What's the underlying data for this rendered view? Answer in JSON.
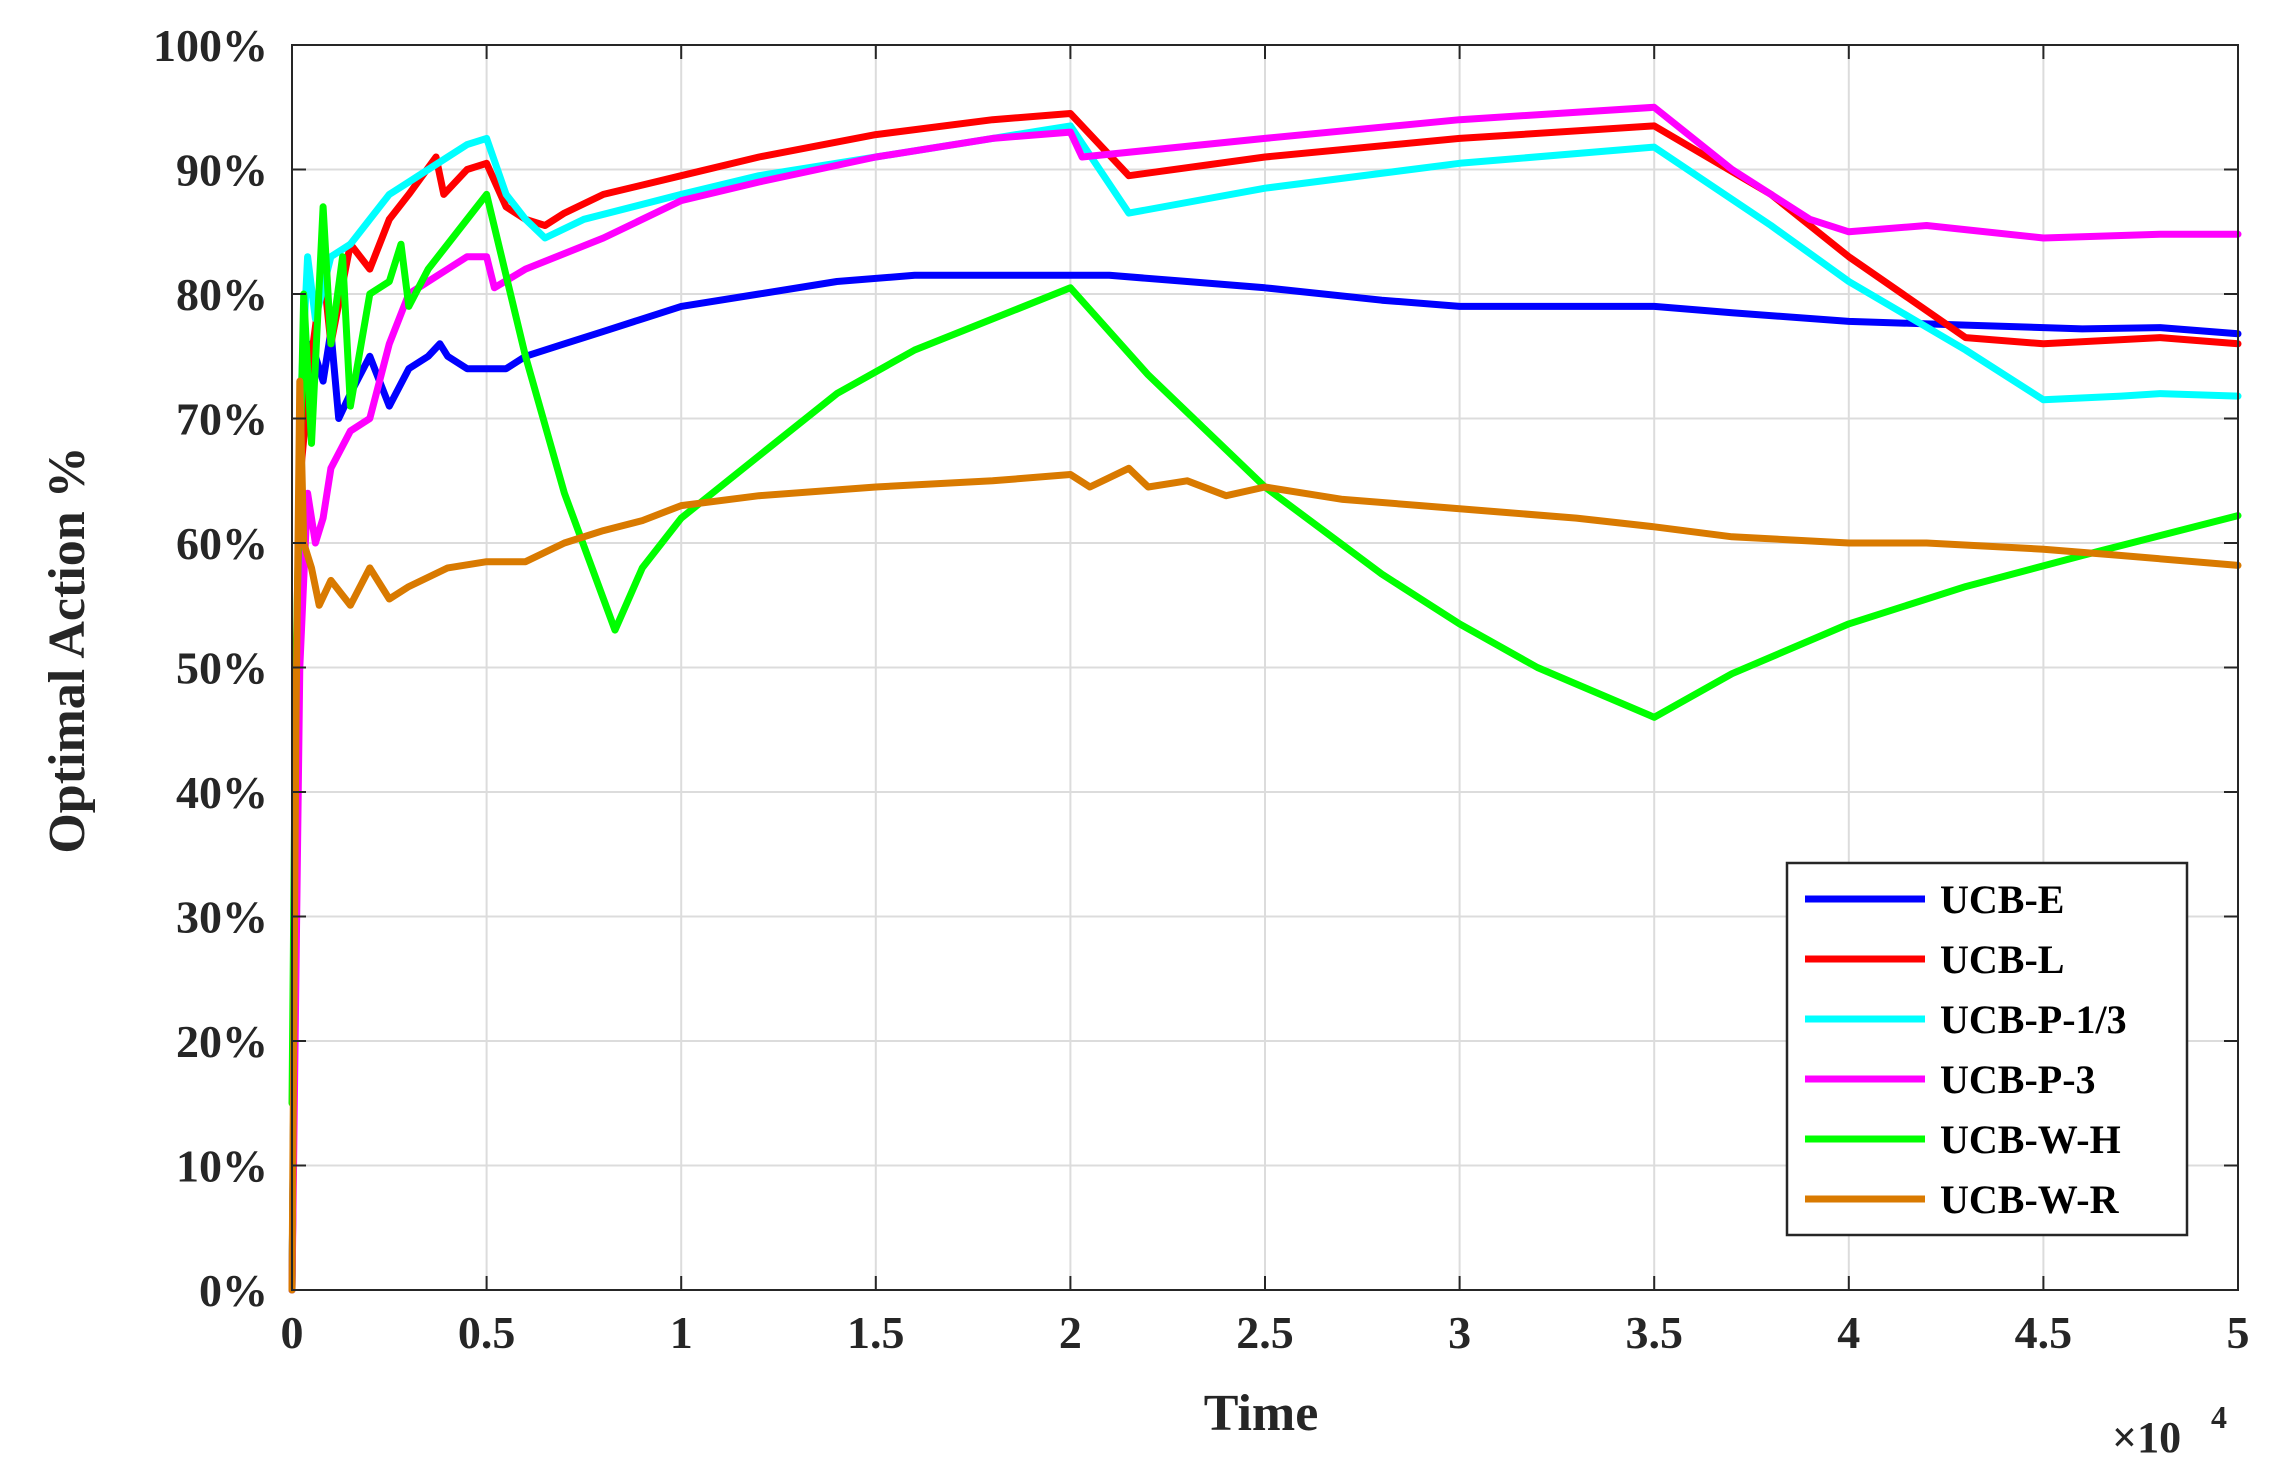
{
  "chart_data": {
    "type": "line",
    "title": "",
    "xlabel": "Time",
    "ylabel": "Optimal Action %",
    "x_exponent_label": "×10",
    "x_exponent_power": "4",
    "xlim": [
      0,
      5
    ],
    "ylim": [
      0,
      100
    ],
    "x_ticks": [
      0,
      0.5,
      1,
      1.5,
      2,
      2.5,
      3,
      3.5,
      4,
      4.5,
      5
    ],
    "x_tick_labels": [
      "0",
      "0.5",
      "1",
      "1.5",
      "2",
      "2.5",
      "3",
      "3.5",
      "4",
      "4.5",
      "5"
    ],
    "y_ticks": [
      0,
      10,
      20,
      30,
      40,
      50,
      60,
      70,
      80,
      90,
      100
    ],
    "y_tick_labels": [
      "0%",
      "10%",
      "20%",
      "30%",
      "40%",
      "50%",
      "60%",
      "70%",
      "80%",
      "90%",
      "100%"
    ],
    "grid": true,
    "legend_position": "bottom-right",
    "series": [
      {
        "name": "UCB-E",
        "color": "#0000ff",
        "points": [
          [
            0,
            0
          ],
          [
            0.02,
            70
          ],
          [
            0.05,
            76
          ],
          [
            0.08,
            73
          ],
          [
            0.1,
            77
          ],
          [
            0.12,
            70
          ],
          [
            0.15,
            72
          ],
          [
            0.2,
            75
          ],
          [
            0.25,
            71
          ],
          [
            0.3,
            74
          ],
          [
            0.35,
            75
          ],
          [
            0.38,
            76
          ],
          [
            0.4,
            75
          ],
          [
            0.45,
            74
          ],
          [
            0.5,
            74
          ],
          [
            0.55,
            74
          ],
          [
            0.6,
            75
          ],
          [
            0.7,
            76
          ],
          [
            0.8,
            77
          ],
          [
            0.9,
            78
          ],
          [
            1.0,
            79
          ],
          [
            1.2,
            80
          ],
          [
            1.4,
            81
          ],
          [
            1.6,
            81.5
          ],
          [
            1.8,
            81.5
          ],
          [
            2.0,
            81.5
          ],
          [
            2.1,
            81.5
          ],
          [
            2.3,
            81
          ],
          [
            2.5,
            80.5
          ],
          [
            2.8,
            79.5
          ],
          [
            3.0,
            79
          ],
          [
            3.2,
            79
          ],
          [
            3.5,
            79
          ],
          [
            3.7,
            78.5
          ],
          [
            4.0,
            77.8
          ],
          [
            4.3,
            77.5
          ],
          [
            4.6,
            77.2
          ],
          [
            4.8,
            77.3
          ],
          [
            5.0,
            76.8
          ]
        ]
      },
      {
        "name": "UCB-L",
        "color": "#ff0000",
        "points": [
          [
            0,
            0
          ],
          [
            0.02,
            65
          ],
          [
            0.05,
            75
          ],
          [
            0.08,
            82
          ],
          [
            0.1,
            76
          ],
          [
            0.15,
            84
          ],
          [
            0.2,
            82
          ],
          [
            0.25,
            86
          ],
          [
            0.3,
            88
          ],
          [
            0.37,
            91
          ],
          [
            0.39,
            88
          ],
          [
            0.45,
            90
          ],
          [
            0.5,
            90.5
          ],
          [
            0.55,
            87
          ],
          [
            0.6,
            86
          ],
          [
            0.65,
            85.5
          ],
          [
            0.7,
            86.5
          ],
          [
            0.8,
            88
          ],
          [
            1.0,
            89.5
          ],
          [
            1.2,
            91
          ],
          [
            1.5,
            92.8
          ],
          [
            1.8,
            94
          ],
          [
            2.0,
            94.5
          ],
          [
            2.15,
            89.5
          ],
          [
            2.5,
            91
          ],
          [
            3.0,
            92.5
          ],
          [
            3.5,
            93.5
          ],
          [
            3.8,
            88
          ],
          [
            4.0,
            83
          ],
          [
            4.3,
            76.5
          ],
          [
            4.5,
            76
          ],
          [
            4.8,
            76.5
          ],
          [
            5.0,
            76
          ]
        ]
      },
      {
        "name": "UCB-P-1/3",
        "color": "#00ffff",
        "points": [
          [
            0,
            0
          ],
          [
            0.02,
            70
          ],
          [
            0.04,
            83
          ],
          [
            0.06,
            78
          ],
          [
            0.1,
            83
          ],
          [
            0.15,
            84
          ],
          [
            0.2,
            86
          ],
          [
            0.25,
            88
          ],
          [
            0.3,
            89
          ],
          [
            0.35,
            90
          ],
          [
            0.4,
            91
          ],
          [
            0.45,
            92
          ],
          [
            0.5,
            92.5
          ],
          [
            0.55,
            88
          ],
          [
            0.6,
            86
          ],
          [
            0.65,
            84.5
          ],
          [
            0.75,
            86
          ],
          [
            1.0,
            88
          ],
          [
            1.2,
            89.5
          ],
          [
            1.5,
            91
          ],
          [
            1.8,
            92.5
          ],
          [
            2.0,
            93.5
          ],
          [
            2.15,
            86.5
          ],
          [
            2.5,
            88.5
          ],
          [
            3.0,
            90.5
          ],
          [
            3.5,
            91.8
          ],
          [
            3.8,
            85.5
          ],
          [
            4.0,
            81
          ],
          [
            4.3,
            75.5
          ],
          [
            4.5,
            71.5
          ],
          [
            4.7,
            71.8
          ],
          [
            4.8,
            72
          ],
          [
            5.0,
            71.8
          ]
        ]
      },
      {
        "name": "UCB-P-3",
        "color": "#ff00ff",
        "points": [
          [
            0,
            0
          ],
          [
            0.02,
            50
          ],
          [
            0.04,
            64
          ],
          [
            0.06,
            60
          ],
          [
            0.08,
            62
          ],
          [
            0.1,
            66
          ],
          [
            0.15,
            69
          ],
          [
            0.2,
            70
          ],
          [
            0.25,
            76
          ],
          [
            0.3,
            80
          ],
          [
            0.35,
            81
          ],
          [
            0.4,
            82
          ],
          [
            0.45,
            83
          ],
          [
            0.5,
            83
          ],
          [
            0.52,
            80.5
          ],
          [
            0.6,
            82
          ],
          [
            0.8,
            84.5
          ],
          [
            1.0,
            87.5
          ],
          [
            1.2,
            89
          ],
          [
            1.5,
            91
          ],
          [
            1.8,
            92.5
          ],
          [
            2.0,
            93
          ],
          [
            2.03,
            91
          ],
          [
            2.5,
            92.5
          ],
          [
            3.0,
            94
          ],
          [
            3.5,
            95
          ],
          [
            3.7,
            90
          ],
          [
            3.9,
            86
          ],
          [
            4.0,
            85
          ],
          [
            4.2,
            85.5
          ],
          [
            4.5,
            84.5
          ],
          [
            4.8,
            84.8
          ],
          [
            5.0,
            84.8
          ]
        ]
      },
      {
        "name": "UCB-W-H",
        "color": "#00ff00",
        "points": [
          [
            0,
            15
          ],
          [
            0.01,
            50
          ],
          [
            0.03,
            80
          ],
          [
            0.05,
            68
          ],
          [
            0.08,
            87
          ],
          [
            0.1,
            76
          ],
          [
            0.13,
            83
          ],
          [
            0.15,
            71
          ],
          [
            0.2,
            80
          ],
          [
            0.25,
            81
          ],
          [
            0.28,
            84
          ],
          [
            0.3,
            79
          ],
          [
            0.35,
            82
          ],
          [
            0.4,
            84
          ],
          [
            0.45,
            86
          ],
          [
            0.5,
            88
          ],
          [
            0.6,
            75
          ],
          [
            0.7,
            64
          ],
          [
            0.83,
            53
          ],
          [
            0.9,
            58
          ],
          [
            1.0,
            62
          ],
          [
            1.2,
            67
          ],
          [
            1.4,
            72
          ],
          [
            1.6,
            75.5
          ],
          [
            1.8,
            78
          ],
          [
            2.0,
            80.5
          ],
          [
            2.2,
            73.5
          ],
          [
            2.5,
            64.5
          ],
          [
            2.8,
            57.5
          ],
          [
            3.0,
            53.5
          ],
          [
            3.2,
            50
          ],
          [
            3.5,
            46
          ],
          [
            3.7,
            49.5
          ],
          [
            4.0,
            53.5
          ],
          [
            4.3,
            56.5
          ],
          [
            4.6,
            59
          ],
          [
            5.0,
            62.2
          ]
        ]
      },
      {
        "name": "UCB-W-R",
        "color": "#d97a00",
        "points": [
          [
            0,
            0
          ],
          [
            0.01,
            45
          ],
          [
            0.02,
            73
          ],
          [
            0.03,
            60
          ],
          [
            0.05,
            58
          ],
          [
            0.07,
            55
          ],
          [
            0.1,
            57
          ],
          [
            0.15,
            55
          ],
          [
            0.2,
            58
          ],
          [
            0.25,
            55.5
          ],
          [
            0.3,
            56.5
          ],
          [
            0.4,
            58
          ],
          [
            0.5,
            58.5
          ],
          [
            0.6,
            58.5
          ],
          [
            0.7,
            60
          ],
          [
            0.8,
            61
          ],
          [
            0.9,
            61.8
          ],
          [
            1.0,
            63
          ],
          [
            1.2,
            63.8
          ],
          [
            1.5,
            64.5
          ],
          [
            1.8,
            65
          ],
          [
            2.0,
            65.5
          ],
          [
            2.05,
            64.5
          ],
          [
            2.15,
            66
          ],
          [
            2.2,
            64.5
          ],
          [
            2.3,
            65
          ],
          [
            2.4,
            63.8
          ],
          [
            2.5,
            64.5
          ],
          [
            2.7,
            63.5
          ],
          [
            2.9,
            63
          ],
          [
            3.1,
            62.5
          ],
          [
            3.3,
            62
          ],
          [
            3.5,
            61.3
          ],
          [
            3.7,
            60.5
          ],
          [
            4.0,
            60
          ],
          [
            4.2,
            60
          ],
          [
            4.5,
            59.5
          ],
          [
            4.7,
            59
          ],
          [
            5.0,
            58.2
          ]
        ]
      }
    ]
  }
}
